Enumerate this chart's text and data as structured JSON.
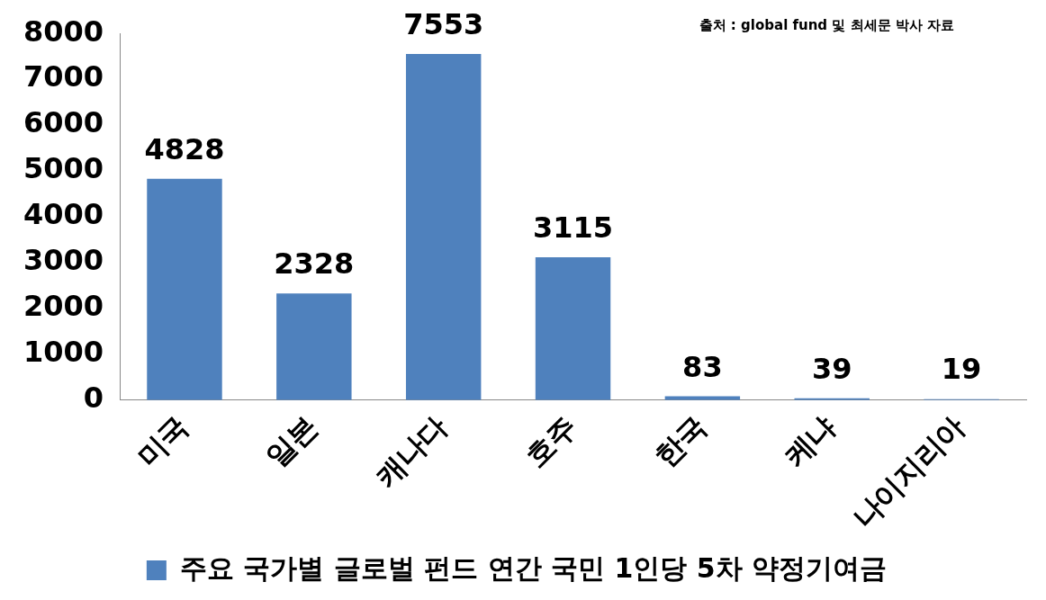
{
  "chart_data": {
    "type": "bar",
    "categories": [
      "미국",
      "일본",
      "캐나다",
      "호주",
      "한국",
      "케냐",
      "나이지리아"
    ],
    "series": [
      {
        "name": "주요 국가별 글로벌 펀드 연간 국민 1인당 5차 약정기여금",
        "color": "#4f81bd",
        "values": [
          4828,
          2328,
          7553,
          3115,
          83,
          39,
          19
        ]
      }
    ],
    "ylim": [
      0,
      8000
    ],
    "yticks": [
      0,
      1000,
      2000,
      3000,
      4000,
      5000,
      6000,
      7000,
      8000
    ],
    "grid": false,
    "legend": "bottom",
    "data_labels": true,
    "annotations": [
      "출처 : global fund 및 최세문 박사 자료"
    ]
  }
}
